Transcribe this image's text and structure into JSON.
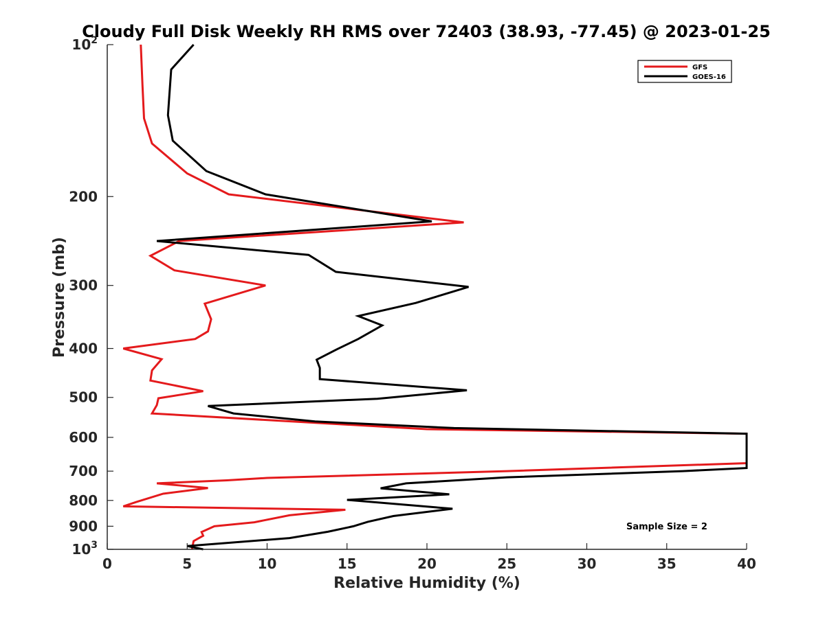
{
  "chart_data": {
    "type": "line",
    "title": "Cloudy Full Disk Weekly RH RMS over 72403 (38.93, -77.45) @ 2023-01-25",
    "xlabel": "Relative Humidity (%)",
    "ylabel": "Pressure (mb)",
    "xlim": [
      0,
      40
    ],
    "ylim": [
      100,
      1000
    ],
    "y_scale": "log",
    "y_reversed": true,
    "grid": false,
    "legend_position": "top-right",
    "x_ticks": [
      "0",
      "5",
      "10",
      "15",
      "20",
      "25",
      "30",
      "35",
      "40"
    ],
    "y_ticks": [
      {
        "value": 100,
        "base": "10",
        "exp": "2"
      },
      {
        "value": 200,
        "label": "200"
      },
      {
        "value": 300,
        "label": "300"
      },
      {
        "value": 400,
        "label": "400"
      },
      {
        "value": 500,
        "label": "500"
      },
      {
        "value": 600,
        "label": "600"
      },
      {
        "value": 700,
        "label": "700"
      },
      {
        "value": 800,
        "label": "800"
      },
      {
        "value": 900,
        "label": "900"
      },
      {
        "value": 1000,
        "base": "10",
        "exp": "3"
      }
    ],
    "annotation": "Sample Size = 2",
    "series": [
      {
        "name": "GFS",
        "color": "#e41a1c",
        "x": [
          2.1,
          2.2,
          2.3,
          2.8,
          5.0,
          7.6,
          22.3,
          4.5,
          2.7,
          4.2,
          9.9,
          6.1,
          6.5,
          6.3,
          5.5,
          1.0,
          3.4,
          2.8,
          2.7,
          6.0,
          3.2,
          3.1,
          2.8,
          20.0,
          40.0,
          40.0,
          25.0,
          10.0,
          7.5,
          3.1,
          6.3,
          3.5,
          1.8,
          1.0,
          14.9,
          11.4,
          9.2,
          6.7,
          5.9,
          6.0,
          5.4,
          5.3
        ],
        "y": [
          100,
          120,
          140,
          157,
          180,
          198,
          225,
          245,
          262,
          280,
          300,
          326,
          350,
          370,
          383,
          400,
          420,
          442,
          463,
          486,
          502,
          518,
          538,
          578,
          590,
          675,
          700,
          722,
          730,
          740,
          756,
          776,
          806,
          822,
          835,
          856,
          884,
          900,
          924,
          940,
          963,
          1000
        ]
      },
      {
        "name": "GOES-16",
        "color": "#000000",
        "x": [
          5.4,
          4.0,
          3.8,
          4.1,
          6.2,
          9.9,
          20.3,
          3.1,
          12.6,
          14.3,
          22.6,
          19.3,
          15.7,
          17.2,
          15.7,
          14.4,
          13.1,
          13.3,
          13.3,
          22.5,
          16.9,
          6.3,
          7.9,
          13.0,
          21.7,
          40.0,
          40.0,
          36.0,
          25.0,
          18.7,
          17.1,
          21.4,
          15.0,
          21.6,
          17.9,
          16.3,
          15.4,
          13.8,
          11.4,
          5.0,
          6.0
        ],
        "y": [
          100,
          112,
          138,
          155,
          178,
          198,
          224,
          245,
          261,
          282,
          302,
          325,
          345,
          360,
          383,
          401,
          421,
          437,
          460,
          484,
          503,
          520,
          538,
          558,
          575,
          590,
          690,
          700,
          720,
          740,
          757,
          778,
          798,
          831,
          859,
          882,
          900,
          923,
          950,
          985,
          1000
        ]
      }
    ]
  }
}
